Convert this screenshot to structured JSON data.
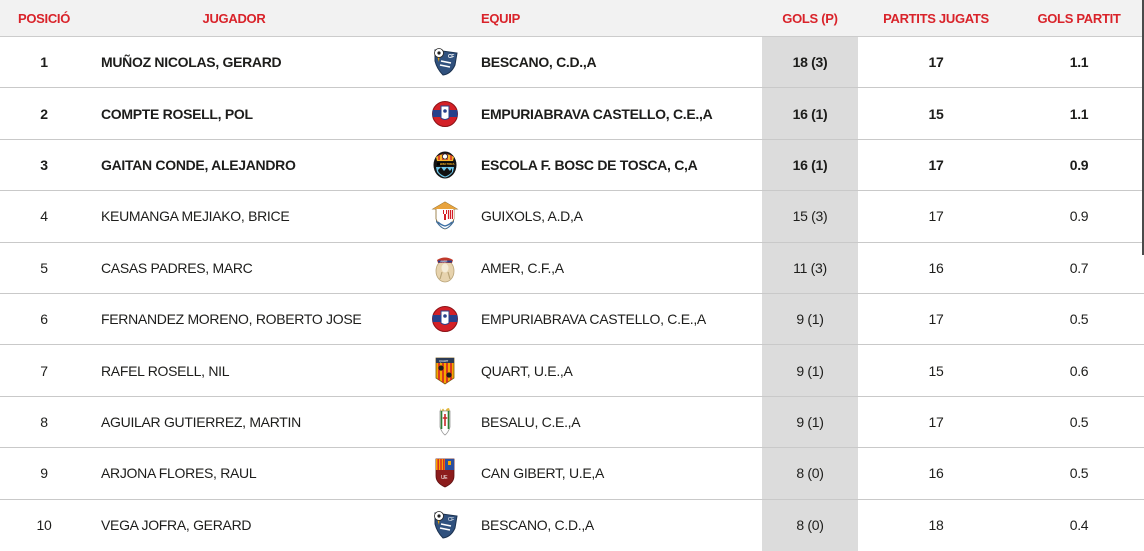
{
  "colors": {
    "accent_red": "#d9232a",
    "header_bg": "#f2f2f2",
    "goals_column_bg": "#dcdcdc",
    "separator": "#c9c9c9",
    "scrollbar": "#4b4b4b"
  },
  "columns": [
    {
      "key": "pos",
      "label": "POSICIÓ"
    },
    {
      "key": "player",
      "label": "JUGADOR"
    },
    {
      "key": "team",
      "label": "EQUIP"
    },
    {
      "key": "goals",
      "label": "GOLS (P)"
    },
    {
      "key": "matches",
      "label": "PARTITS JUGATS"
    },
    {
      "key": "goals_game",
      "label": "GOLS PARTIT"
    }
  ],
  "logos": {
    "bescano": {
      "kind": "bescano",
      "colors": [
        "#30517e",
        "#f7a600",
        "#d42027",
        "#ffffff"
      ]
    },
    "empuriabrava": {
      "kind": "empuriabrava",
      "colors": [
        "#d42027",
        "#27408b",
        "#ffffff",
        "#f7a600"
      ]
    },
    "tosca": {
      "kind": "tosca",
      "colors": [
        "#141414",
        "#f7b32b",
        "#d42027",
        "#6ec6e8"
      ]
    },
    "guixols": {
      "kind": "guixols",
      "colors": [
        "#e8a33d",
        "#ffffff",
        "#d42027",
        "#3a6ea5"
      ]
    },
    "amer": {
      "kind": "amer",
      "colors": [
        "#e7d3ae",
        "#c0392b",
        "#27408b",
        "#f5ecd8"
      ]
    },
    "quart": {
      "kind": "quart",
      "colors": [
        "#2b3a55",
        "#f7a600",
        "#d42027",
        "#1d1d1b"
      ]
    },
    "besalu": {
      "kind": "besalu",
      "colors": [
        "#ffffff",
        "#2e7d32",
        "#c62828",
        "#e0b63c"
      ]
    },
    "cangibert": {
      "kind": "cangibert",
      "colors": [
        "#f7a600",
        "#2b4f9e",
        "#8c1c1c",
        "#d42027"
      ]
    }
  },
  "rows": [
    {
      "pos": "1",
      "player": "MUÑOZ NICOLAS, GERARD",
      "team": "BESCANO, C.D.,A",
      "logo": "bescano",
      "goals": "18 (3)",
      "matches": "17",
      "goals_game": "1.1",
      "bold": true
    },
    {
      "pos": "2",
      "player": "COMPTE ROSELL, POL",
      "team": "EMPURIABRAVA CASTELLO, C.E.,A",
      "logo": "empuriabrava",
      "goals": "16 (1)",
      "matches": "15",
      "goals_game": "1.1",
      "bold": true
    },
    {
      "pos": "3",
      "player": "GAITAN CONDE, ALEJANDRO",
      "team": "ESCOLA F. BOSC DE TOSCA, C,A",
      "logo": "tosca",
      "goals": "16 (1)",
      "matches": "17",
      "goals_game": "0.9",
      "bold": true
    },
    {
      "pos": "4",
      "player": "KEUMANGA MEJIAKO, BRICE",
      "team": "GUIXOLS, A.D,A",
      "logo": "guixols",
      "goals": "15 (3)",
      "matches": "17",
      "goals_game": "0.9",
      "bold": false
    },
    {
      "pos": "5",
      "player": "CASAS PADRES, MARC",
      "team": "AMER, C.F.,A",
      "logo": "amer",
      "goals": "11 (3)",
      "matches": "16",
      "goals_game": "0.7",
      "bold": false
    },
    {
      "pos": "6",
      "player": "FERNANDEZ MORENO, ROBERTO JOSE",
      "team": "EMPURIABRAVA CASTELLO, C.E.,A",
      "logo": "empuriabrava",
      "goals": "9 (1)",
      "matches": "17",
      "goals_game": "0.5",
      "bold": false
    },
    {
      "pos": "7",
      "player": "RAFEL ROSELL, NIL",
      "team": "QUART, U.E.,A",
      "logo": "quart",
      "goals": "9 (1)",
      "matches": "15",
      "goals_game": "0.6",
      "bold": false
    },
    {
      "pos": "8",
      "player": "AGUILAR GUTIERREZ, MARTIN",
      "team": "BESALU, C.E.,A",
      "logo": "besalu",
      "goals": "9 (1)",
      "matches": "17",
      "goals_game": "0.5",
      "bold": false
    },
    {
      "pos": "9",
      "player": "ARJONA FLORES, RAUL",
      "team": "CAN GIBERT, U.E,A",
      "logo": "cangibert",
      "goals": "8 (0)",
      "matches": "16",
      "goals_game": "0.5",
      "bold": false
    },
    {
      "pos": "10",
      "player": "VEGA JOFRA, GERARD",
      "team": "BESCANO, C.D.,A",
      "logo": "bescano",
      "goals": "8 (0)",
      "matches": "18",
      "goals_game": "0.4",
      "bold": false
    }
  ]
}
